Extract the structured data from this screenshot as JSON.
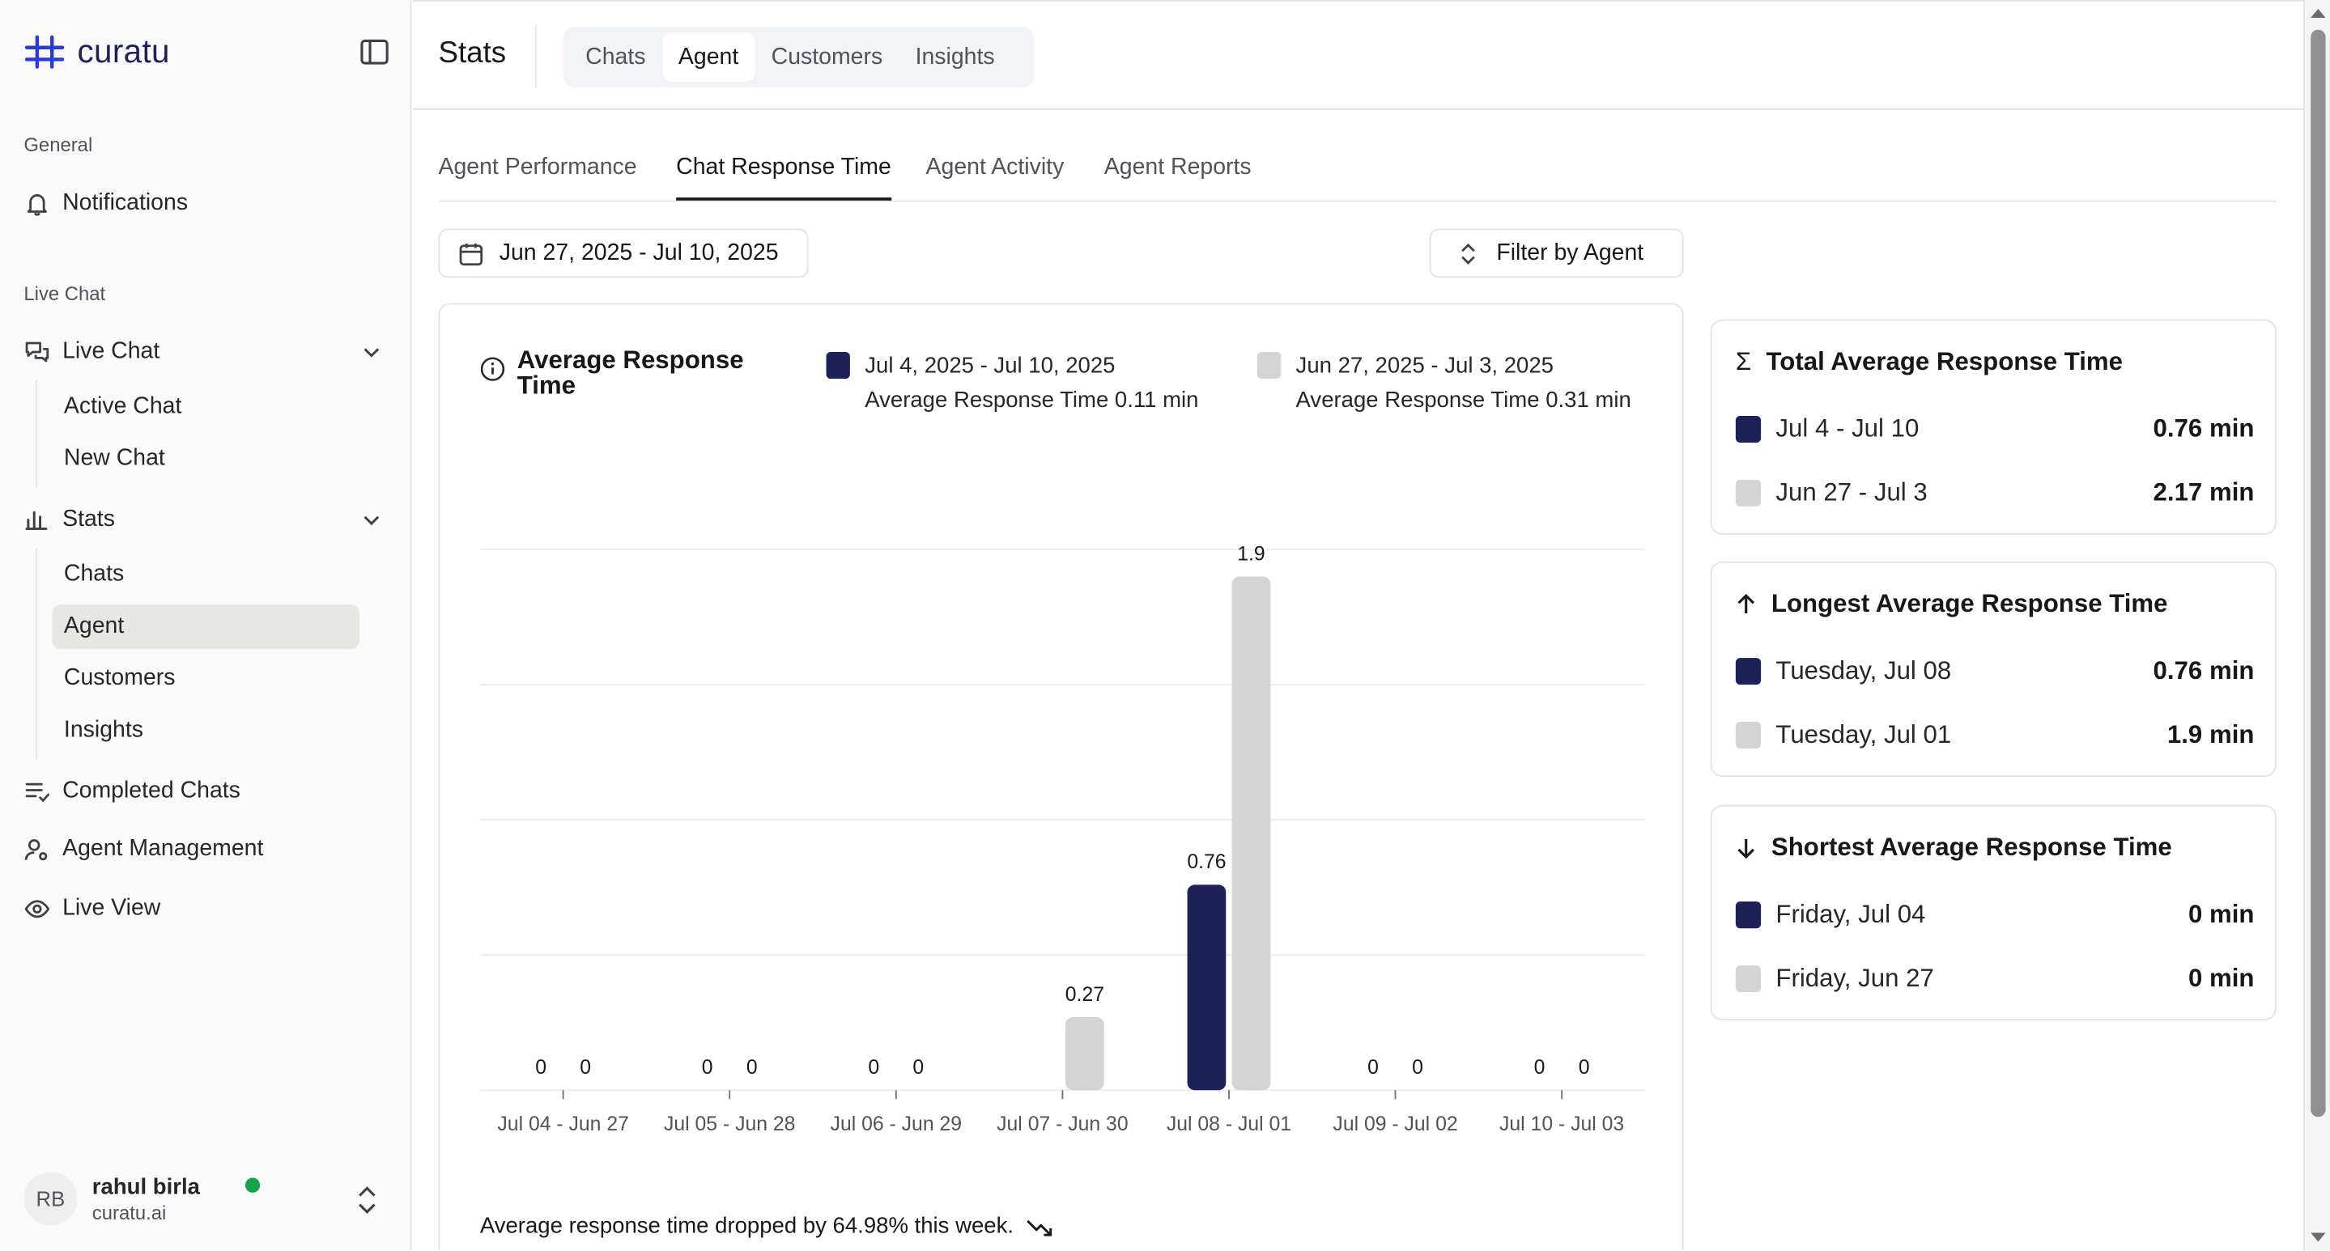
{
  "brand": {
    "name": "curatu"
  },
  "sidebar": {
    "group_general": "General",
    "notifications": "Notifications",
    "group_live_chat": "Live Chat",
    "live_chat": "Live Chat",
    "live_chat_items": [
      "Active Chat",
      "New Chat"
    ],
    "stats": "Stats",
    "stats_items": [
      "Chats",
      "Agent",
      "Customers",
      "Insights"
    ],
    "active_stats_item": "Agent",
    "completed_chats": "Completed Chats",
    "agent_management": "Agent Management",
    "live_view": "Live View"
  },
  "user": {
    "initials": "RB",
    "name": "rahul birla",
    "email": "curatu.ai",
    "status_color": "#16a34a"
  },
  "header": {
    "title": "Stats",
    "tabs": [
      "Chats",
      "Agent",
      "Customers",
      "Insights"
    ],
    "active_tab": "Agent"
  },
  "subtabs": {
    "items": [
      "Agent Performance",
      "Chat Response Time",
      "Agent Activity",
      "Agent Reports"
    ],
    "active": "Chat Response Time"
  },
  "date_range": "Jun 27, 2025 - Jul 10, 2025",
  "filter_label": "Filter by Agent",
  "colors": {
    "current": "#1e2157",
    "previous": "#d4d4d4"
  },
  "chart": {
    "title": "Average Response Time",
    "legend": [
      {
        "range": "Jul 4, 2025 - Jul 10, 2025",
        "summary": "Average Response Time 0.11 min",
        "color": "#1e2157"
      },
      {
        "range": "Jun 27, 2025 - Jul 3, 2025",
        "summary": "Average Response Time 0.31 min",
        "color": "#d4d4d4"
      }
    ],
    "footnote": "Average response time dropped by 64.98% this week."
  },
  "chart_data": {
    "type": "bar",
    "categories": [
      "Jul 04 - Jun 27",
      "Jul 05 - Jun 28",
      "Jul 06 - Jun 29",
      "Jul 07 - Jun 30",
      "Jul 08 - Jul 01",
      "Jul 09 - Jul 02",
      "Jul 10 - Jul 03"
    ],
    "series": [
      {
        "name": "Jul 4, 2025 - Jul 10, 2025",
        "values": [
          0,
          0,
          0,
          null,
          0.76,
          0,
          0
        ],
        "color": "#1e2157"
      },
      {
        "name": "Jun 27, 2025 - Jul 3, 2025",
        "values": [
          0,
          0,
          0,
          0.27,
          1.9,
          0,
          0
        ],
        "color": "#d4d4d4"
      }
    ],
    "ylim": [
      0,
      2
    ],
    "grid": true,
    "data_labels": true
  },
  "stats_cards": [
    {
      "title": "Total Average Response Time",
      "icon": "sigma-icon",
      "rows": [
        {
          "label": "Jul 4 - Jul 10",
          "value": "0.76 min",
          "color": "#1e2157"
        },
        {
          "label": "Jun 27 - Jul 3",
          "value": "2.17 min",
          "color": "#d4d4d4"
        }
      ]
    },
    {
      "title": "Longest Average Response Time",
      "icon": "arrow-up-icon",
      "rows": [
        {
          "label": "Tuesday, Jul 08",
          "value": "0.76 min",
          "color": "#1e2157"
        },
        {
          "label": "Tuesday, Jul 01",
          "value": "1.9 min",
          "color": "#d4d4d4"
        }
      ]
    },
    {
      "title": "Shortest Average Response Time",
      "icon": "arrow-down-icon",
      "rows": [
        {
          "label": "Friday, Jul 04",
          "value": "0 min",
          "color": "#1e2157"
        },
        {
          "label": "Friday, Jun 27",
          "value": "0 min",
          "color": "#d4d4d4"
        }
      ]
    }
  ]
}
